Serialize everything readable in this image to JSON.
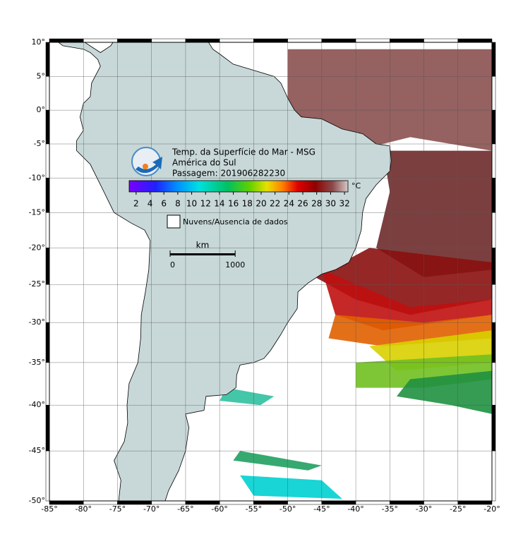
{
  "map": {
    "title": "Temp. da Superfície do Mar - MSG",
    "subtitle": "América do Sul",
    "pass": "Passagem: 201906282230",
    "colorbar": {
      "unit": "°C",
      "range": [
        1,
        32.5
      ],
      "ticks": [
        2,
        4,
        6,
        8,
        10,
        12,
        14,
        16,
        18,
        20,
        22,
        24,
        26,
        28,
        30,
        32
      ]
    },
    "legend": "Nuvens/Ausencia de dados",
    "scale": {
      "unit": "km",
      "ticks": [
        0,
        1000
      ]
    },
    "lonlim": [
      -85,
      -20
    ],
    "latlim": [
      -50,
      10
    ],
    "lon_ticks": [
      {
        "value": -85,
        "label": "-85°"
      },
      {
        "value": -80,
        "label": "-80°"
      },
      {
        "value": -75,
        "label": "-75°"
      },
      {
        "value": -70,
        "label": "-70°"
      },
      {
        "value": -65,
        "label": "-65°"
      },
      {
        "value": -60,
        "label": "-60°"
      },
      {
        "value": -55,
        "label": "-55°"
      },
      {
        "value": -50,
        "label": "-50°"
      },
      {
        "value": -45,
        "label": "-45°"
      },
      {
        "value": -40,
        "label": "-40°"
      },
      {
        "value": -35,
        "label": "-35°"
      },
      {
        "value": -30,
        "label": "-30°"
      },
      {
        "value": -25,
        "label": "-25°"
      },
      {
        "value": -20,
        "label": "-20°"
      }
    ],
    "lat_ticks": [
      {
        "value": 10,
        "label": "10°"
      },
      {
        "value": 5,
        "label": "5°"
      },
      {
        "value": 0,
        "label": "0°"
      },
      {
        "value": -5,
        "label": "-5°"
      },
      {
        "value": -10,
        "label": "-10°"
      },
      {
        "value": -15,
        "label": "-15°"
      },
      {
        "value": -20,
        "label": "-20°"
      },
      {
        "value": -25,
        "label": "-25°"
      },
      {
        "value": -30,
        "label": "-30°"
      },
      {
        "value": -35,
        "label": "-35°"
      },
      {
        "value": -40,
        "label": "-40°"
      },
      {
        "value": -45,
        "label": "-45°"
      },
      {
        "value": -50,
        "label": "-50°"
      }
    ]
  }
}
